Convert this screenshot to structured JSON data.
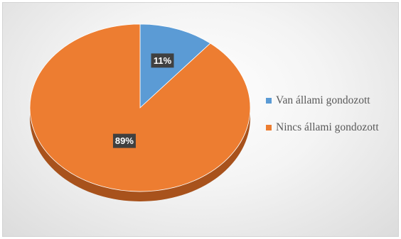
{
  "chart_data": {
    "type": "pie",
    "style": "3d",
    "title": "",
    "slices": [
      {
        "name": "Van állami gondozott",
        "value": 11,
        "label": "11%",
        "color": "#5b9bd5",
        "side_color": "#3a6d9c"
      },
      {
        "name": "Nincs állami gondozott",
        "value": 89,
        "label": "89%",
        "color": "#ed7d31",
        "side_color": "#a8521c"
      }
    ],
    "legend_position": "right",
    "data_label_background": "#404040"
  }
}
